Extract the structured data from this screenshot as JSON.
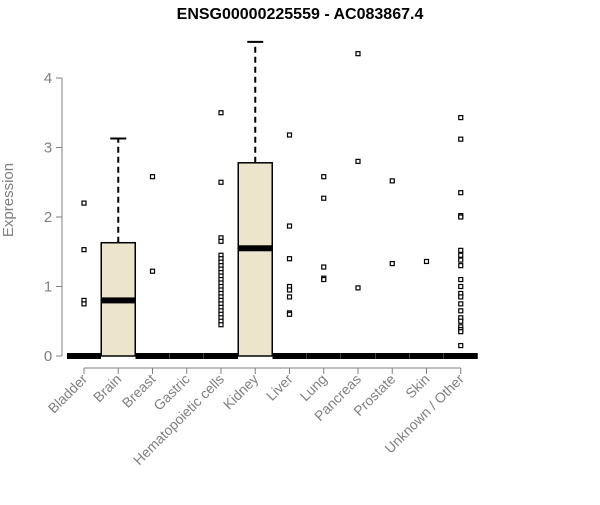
{
  "chart_data": {
    "type": "box",
    "title": "ENSG00000225559 - AC083867.4",
    "xlabel": "",
    "ylabel": "Expression",
    "ylim": [
      0,
      4.5
    ],
    "yticks": [
      0,
      1,
      2,
      3,
      4
    ],
    "grid": false,
    "colors": {
      "box_fill": "#ece5cc",
      "axis": "#808080",
      "label": "#808080",
      "ink": "#000000"
    },
    "categories": [
      "Bladder",
      "Brain",
      "Breast",
      "Gastric",
      "Hematopoietic cells",
      "Kidney",
      "Liver",
      "Lung",
      "Pancreas",
      "Prostate",
      "Skin",
      "Unknown / Other"
    ],
    "boxes": [
      {
        "category": "Bladder",
        "q1": 0,
        "median": 0,
        "q3": 0,
        "whisker_low": 0,
        "whisker_high": 0,
        "outliers": [
          2.2,
          1.53,
          0.8,
          0.75
        ]
      },
      {
        "category": "Brain",
        "q1": 0,
        "median": 0.8,
        "q3": 1.63,
        "whisker_low": 0,
        "whisker_high": 3.13,
        "outliers": []
      },
      {
        "category": "Breast",
        "q1": 0,
        "median": 0,
        "q3": 0,
        "whisker_low": 0,
        "whisker_high": 0,
        "outliers": [
          2.58,
          1.22
        ]
      },
      {
        "category": "Gastric",
        "q1": 0,
        "median": 0,
        "q3": 0,
        "whisker_low": 0,
        "whisker_high": 0,
        "outliers": []
      },
      {
        "category": "Hematopoietic cells",
        "q1": 0,
        "median": 0,
        "q3": 0,
        "whisker_low": 0,
        "whisker_high": 0,
        "outliers": [
          3.5,
          2.5,
          1.7,
          1.65,
          1.45,
          1.4,
          1.35,
          1.3,
          1.25,
          1.2,
          1.15,
          1.1,
          1.05,
          1.0,
          0.95,
          0.9,
          0.85,
          0.8,
          0.75,
          0.7,
          0.65,
          0.6,
          0.55,
          0.5,
          0.45
        ]
      },
      {
        "category": "Kidney",
        "q1": 0,
        "median": 1.55,
        "q3": 2.78,
        "whisker_low": 0,
        "whisker_high": 4.52,
        "outliers": []
      },
      {
        "category": "Liver",
        "q1": 0,
        "median": 0,
        "q3": 0,
        "whisker_low": 0,
        "whisker_high": 0,
        "outliers": [
          3.18,
          1.87,
          1.4,
          1.0,
          0.95,
          0.85,
          0.62,
          0.6
        ]
      },
      {
        "category": "Lung",
        "q1": 0,
        "median": 0,
        "q3": 0,
        "whisker_low": 0,
        "whisker_high": 0,
        "outliers": [
          2.58,
          2.27,
          1.28,
          1.12,
          1.1
        ]
      },
      {
        "category": "Pancreas",
        "q1": 0,
        "median": 0,
        "q3": 0,
        "whisker_low": 0,
        "whisker_high": 0,
        "outliers": [
          4.35,
          2.8,
          0.98
        ]
      },
      {
        "category": "Prostate",
        "q1": 0,
        "median": 0,
        "q3": 0,
        "whisker_low": 0,
        "whisker_high": 0,
        "outliers": [
          2.52,
          1.33
        ]
      },
      {
        "category": "Skin",
        "q1": 0,
        "median": 0,
        "q3": 0,
        "whisker_low": 0,
        "whisker_high": 0,
        "outliers": [
          1.36
        ]
      },
      {
        "category": "Unknown / Other",
        "q1": 0,
        "median": 0,
        "q3": 0,
        "whisker_low": 0,
        "whisker_high": 0,
        "outliers": [
          3.43,
          3.12,
          2.35,
          2.02,
          2.0,
          1.52,
          1.45,
          1.38,
          1.3,
          1.1,
          1.0,
          0.9,
          0.85,
          0.75,
          0.65,
          0.55,
          0.5,
          0.42,
          0.38,
          0.35,
          0.15
        ]
      }
    ]
  }
}
